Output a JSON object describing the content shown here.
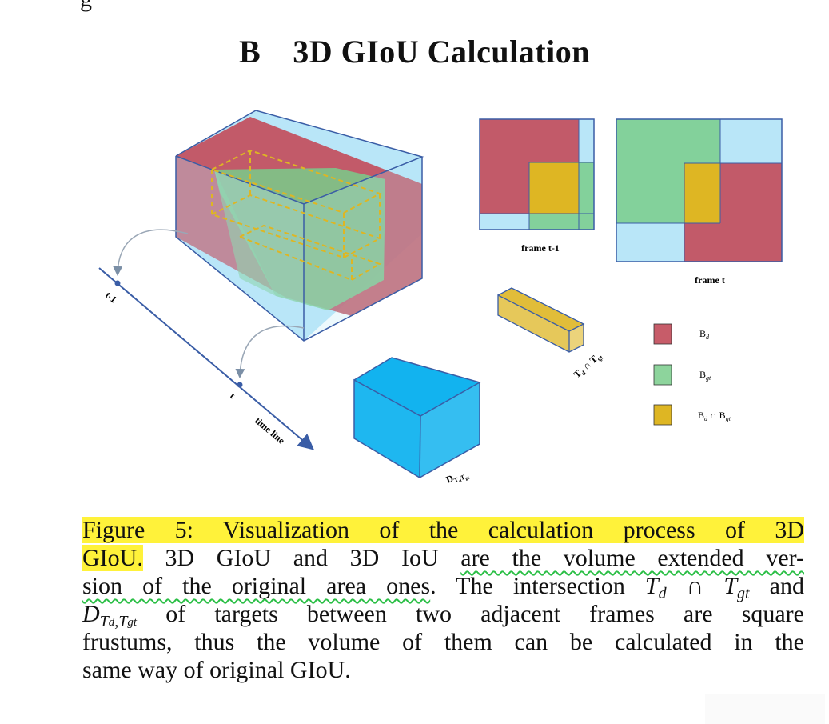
{
  "page": {
    "top_fragment": "g",
    "section_number": "B",
    "section_title": "3D GIoU Calculation"
  },
  "figure": {
    "timeline_label": "time line",
    "tick_prev": "t-1",
    "tick_curr": "t",
    "frame_prev_label": "frame t-1",
    "frame_curr_label": "frame t",
    "intersection_label": "Td ∩ Tgt",
    "enclosing_label": "DTdTgt",
    "legend": [
      {
        "label": "Bd",
        "color": "#c24e5c"
      },
      {
        "label": "Bgt",
        "color": "#79cd8b"
      },
      {
        "label": "Bd ∩ Bgt",
        "color": "#deb623"
      }
    ],
    "colors": {
      "detection": "#c24e5c",
      "ground_truth": "#79cd8b",
      "intersection": "#deb623",
      "enclosing": "#12b3ef",
      "enclosing_light": "#b9e6f8",
      "edge": "#3a5da6"
    }
  },
  "caption": {
    "lines": [
      {
        "segments": [
          {
            "text": "Figure 5: Visualization of the calculation process of 3D",
            "style": "hl"
          }
        ]
      },
      {
        "segments": [
          {
            "text": "GIoU.",
            "style": "hl"
          },
          {
            "text": " 3D GIoU and 3D IoU ",
            "style": ""
          },
          {
            "text": "are the volume extended ver-",
            "style": "wavy"
          }
        ]
      },
      {
        "segments": [
          {
            "text": "sion of the original area ones",
            "style": "wavy"
          },
          {
            "text": ". The intersection ",
            "style": ""
          },
          {
            "text": "T",
            "style": "math"
          },
          {
            "text": "d",
            "style": "sub"
          },
          {
            "text": " ∩ ",
            "style": ""
          },
          {
            "text": "T",
            "style": "math"
          },
          {
            "text": "gt",
            "style": "sub"
          },
          {
            "text": " and",
            "style": ""
          }
        ]
      },
      {
        "segments": [
          {
            "text": "D",
            "style": "math"
          },
          {
            "text": "T",
            "style": "sub"
          },
          {
            "text": "d",
            "style": "subsub"
          },
          {
            "text": ",T",
            "style": "sub"
          },
          {
            "text": "gt",
            "style": "subsub"
          },
          {
            "text": " of targets between two adjacent frames are square",
            "style": ""
          }
        ]
      },
      {
        "segments": [
          {
            "text": "frustums, thus the volume of them can be calculated in the",
            "style": ""
          }
        ]
      },
      {
        "segments": [
          {
            "text": "same way of original GIoU.",
            "style": ""
          }
        ]
      }
    ]
  }
}
